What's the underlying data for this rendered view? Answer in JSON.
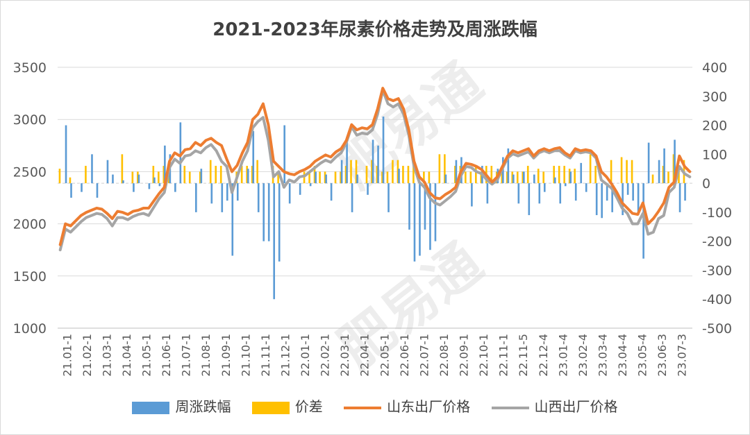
{
  "chart_data": {
    "type": "line",
    "title": "2021-2023年尿素价格走势及周涨跌幅",
    "y_left": {
      "ylim": [
        1000,
        3500
      ],
      "ticks": [
        1000,
        1500,
        2000,
        2500,
        3000,
        3500
      ]
    },
    "y_right": {
      "ylim": [
        -500,
        400
      ],
      "ticks": [
        -500,
        -400,
        -300,
        -200,
        -100,
        0,
        100,
        200,
        300,
        400
      ]
    },
    "x_tick_labels": [
      "21.01-1",
      "21.02-1",
      "21.03-1",
      "21.04-1",
      "21.05-1",
      "21.06-1",
      "21.07-1",
      "21.08-1",
      "21.09-1",
      "21.10-1",
      "21.11-1",
      "21.12-1",
      "22.01-1",
      "22.02-1",
      "22.03-1",
      "22.04-1",
      "22.05-1",
      "22.06-1",
      "22.07-1",
      "22.08-1",
      "22.09-1",
      "22.10-1",
      "22.11-1",
      "22.11-5",
      "22.12-4",
      "23.01-4",
      "23.02-4",
      "23.03-4",
      "23.04-4",
      "23.05-4",
      "23.06-3",
      "23.07-3"
    ],
    "grid": true,
    "legend_position": "bottom",
    "colors": {
      "weekly_change": "#5B9BD5",
      "spread": "#FFC000",
      "shandong": "#ED7D31",
      "shanxi": "#A5A5A5"
    },
    "series": [
      {
        "name": "山东出厂价格",
        "axis": "left",
        "type": "line",
        "values": [
          1800,
          2000,
          1980,
          2030,
          2080,
          2110,
          2130,
          2150,
          2140,
          2100,
          2050,
          2120,
          2110,
          2090,
          2120,
          2130,
          2150,
          2150,
          2220,
          2290,
          2350,
          2600,
          2680,
          2650,
          2710,
          2720,
          2780,
          2750,
          2800,
          2820,
          2780,
          2750,
          2620,
          2500,
          2560,
          2680,
          2780,
          3000,
          3050,
          3150,
          2950,
          2600,
          2550,
          2500,
          2480,
          2470,
          2500,
          2520,
          2550,
          2600,
          2630,
          2660,
          2640,
          2690,
          2720,
          2800,
          2950,
          2900,
          2920,
          2910,
          2950,
          3100,
          3300,
          3200,
          3180,
          3200,
          3100,
          2900,
          2600,
          2450,
          2400,
          2300,
          2250,
          2240,
          2280,
          2310,
          2350,
          2500,
          2580,
          2570,
          2550,
          2520,
          2460,
          2400,
          2450,
          2550,
          2650,
          2700,
          2680,
          2700,
          2720,
          2650,
          2700,
          2720,
          2700,
          2720,
          2730,
          2680,
          2650,
          2720,
          2700,
          2710,
          2700,
          2650,
          2500,
          2450,
          2380,
          2300,
          2200,
          2150,
          2100,
          2090,
          2200,
          2000,
          2050,
          2120,
          2200,
          2350,
          2400,
          2650,
          2550,
          2500
        ]
      },
      {
        "name": "山西出厂价格",
        "axis": "left",
        "type": "line",
        "values": [
          1750,
          1950,
          1920,
          1970,
          2020,
          2060,
          2080,
          2100,
          2090,
          2050,
          1980,
          2060,
          2060,
          2040,
          2070,
          2090,
          2100,
          2080,
          2160,
          2240,
          2300,
          2540,
          2620,
          2580,
          2650,
          2660,
          2700,
          2680,
          2730,
          2760,
          2700,
          2600,
          2550,
          2300,
          2450,
          2600,
          2700,
          2920,
          2980,
          3020,
          2800,
          2450,
          2500,
          2350,
          2420,
          2400,
          2450,
          2460,
          2500,
          2540,
          2580,
          2610,
          2590,
          2640,
          2680,
          2780,
          2930,
          2850,
          2870,
          2860,
          2900,
          3050,
          3280,
          3150,
          3120,
          3150,
          3050,
          2850,
          2550,
          2400,
          2350,
          2250,
          2200,
          2180,
          2220,
          2260,
          2310,
          2460,
          2550,
          2540,
          2500,
          2480,
          2420,
          2380,
          2420,
          2530,
          2630,
          2670,
          2650,
          2670,
          2690,
          2630,
          2680,
          2700,
          2680,
          2700,
          2700,
          2660,
          2630,
          2700,
          2680,
          2690,
          2680,
          2630,
          2420,
          2380,
          2340,
          2250,
          2150,
          2100,
          2000,
          2000,
          2100,
          1900,
          1920,
          2050,
          2080,
          2300,
          2350,
          2550,
          2480,
          2450
        ]
      },
      {
        "name": "周涨跌幅",
        "axis": "right",
        "type": "bar",
        "values": [
          0,
          200,
          -50,
          0,
          -30,
          0,
          100,
          -50,
          0,
          80,
          30,
          0,
          10,
          0,
          -30,
          30,
          0,
          -20,
          20,
          -10,
          130,
          100,
          -30,
          210,
          0,
          0,
          -100,
          50,
          0,
          -70,
          0,
          -100,
          -60,
          -250,
          -60,
          0,
          50,
          180,
          -100,
          -200,
          -200,
          -400,
          -270,
          200,
          -70,
          0,
          -40,
          0,
          -10,
          40,
          0,
          30,
          -60,
          0,
          80,
          160,
          -100,
          30,
          0,
          -40,
          150,
          130,
          230,
          -100,
          0,
          50,
          0,
          -160,
          -270,
          -250,
          -160,
          -230,
          -200,
          0,
          30,
          0,
          80,
          90,
          0,
          -80,
          0,
          60,
          -70,
          0,
          50,
          90,
          120,
          30,
          -70,
          40,
          -110,
          30,
          -70,
          -30,
          0,
          20,
          -70,
          -10,
          40,
          -60,
          70,
          -30,
          0,
          -110,
          -120,
          -60,
          -100,
          0,
          -110,
          -40,
          -60,
          -110,
          -260,
          140,
          0,
          80,
          120,
          0,
          150,
          -100,
          -60
        ]
      },
      {
        "name": "价差",
        "axis": "right",
        "type": "bar",
        "values": [
          50,
          0,
          20,
          0,
          0,
          60,
          0,
          0,
          0,
          0,
          0,
          0,
          100,
          0,
          40,
          40,
          0,
          0,
          60,
          40,
          60,
          40,
          0,
          0,
          60,
          40,
          0,
          40,
          0,
          80,
          60,
          60,
          0,
          0,
          40,
          60,
          60,
          60,
          80,
          0,
          0,
          60,
          40,
          0,
          0,
          0,
          0,
          40,
          40,
          60,
          40,
          40,
          0,
          40,
          40,
          60,
          80,
          80,
          0,
          60,
          80,
          60,
          40,
          40,
          80,
          80,
          60,
          60,
          80,
          0,
          40,
          40,
          0,
          100,
          100,
          0,
          60,
          60,
          40,
          40,
          60,
          40,
          60,
          60,
          40,
          40,
          40,
          40,
          40,
          40,
          60,
          0,
          50,
          40,
          0,
          60,
          60,
          60,
          50,
          50,
          0,
          0,
          100,
          60,
          0,
          0,
          80,
          0,
          90,
          80,
          80,
          0,
          0,
          0,
          30,
          0,
          60,
          40,
          100,
          60,
          80,
          0
        ]
      }
    ]
  }
}
